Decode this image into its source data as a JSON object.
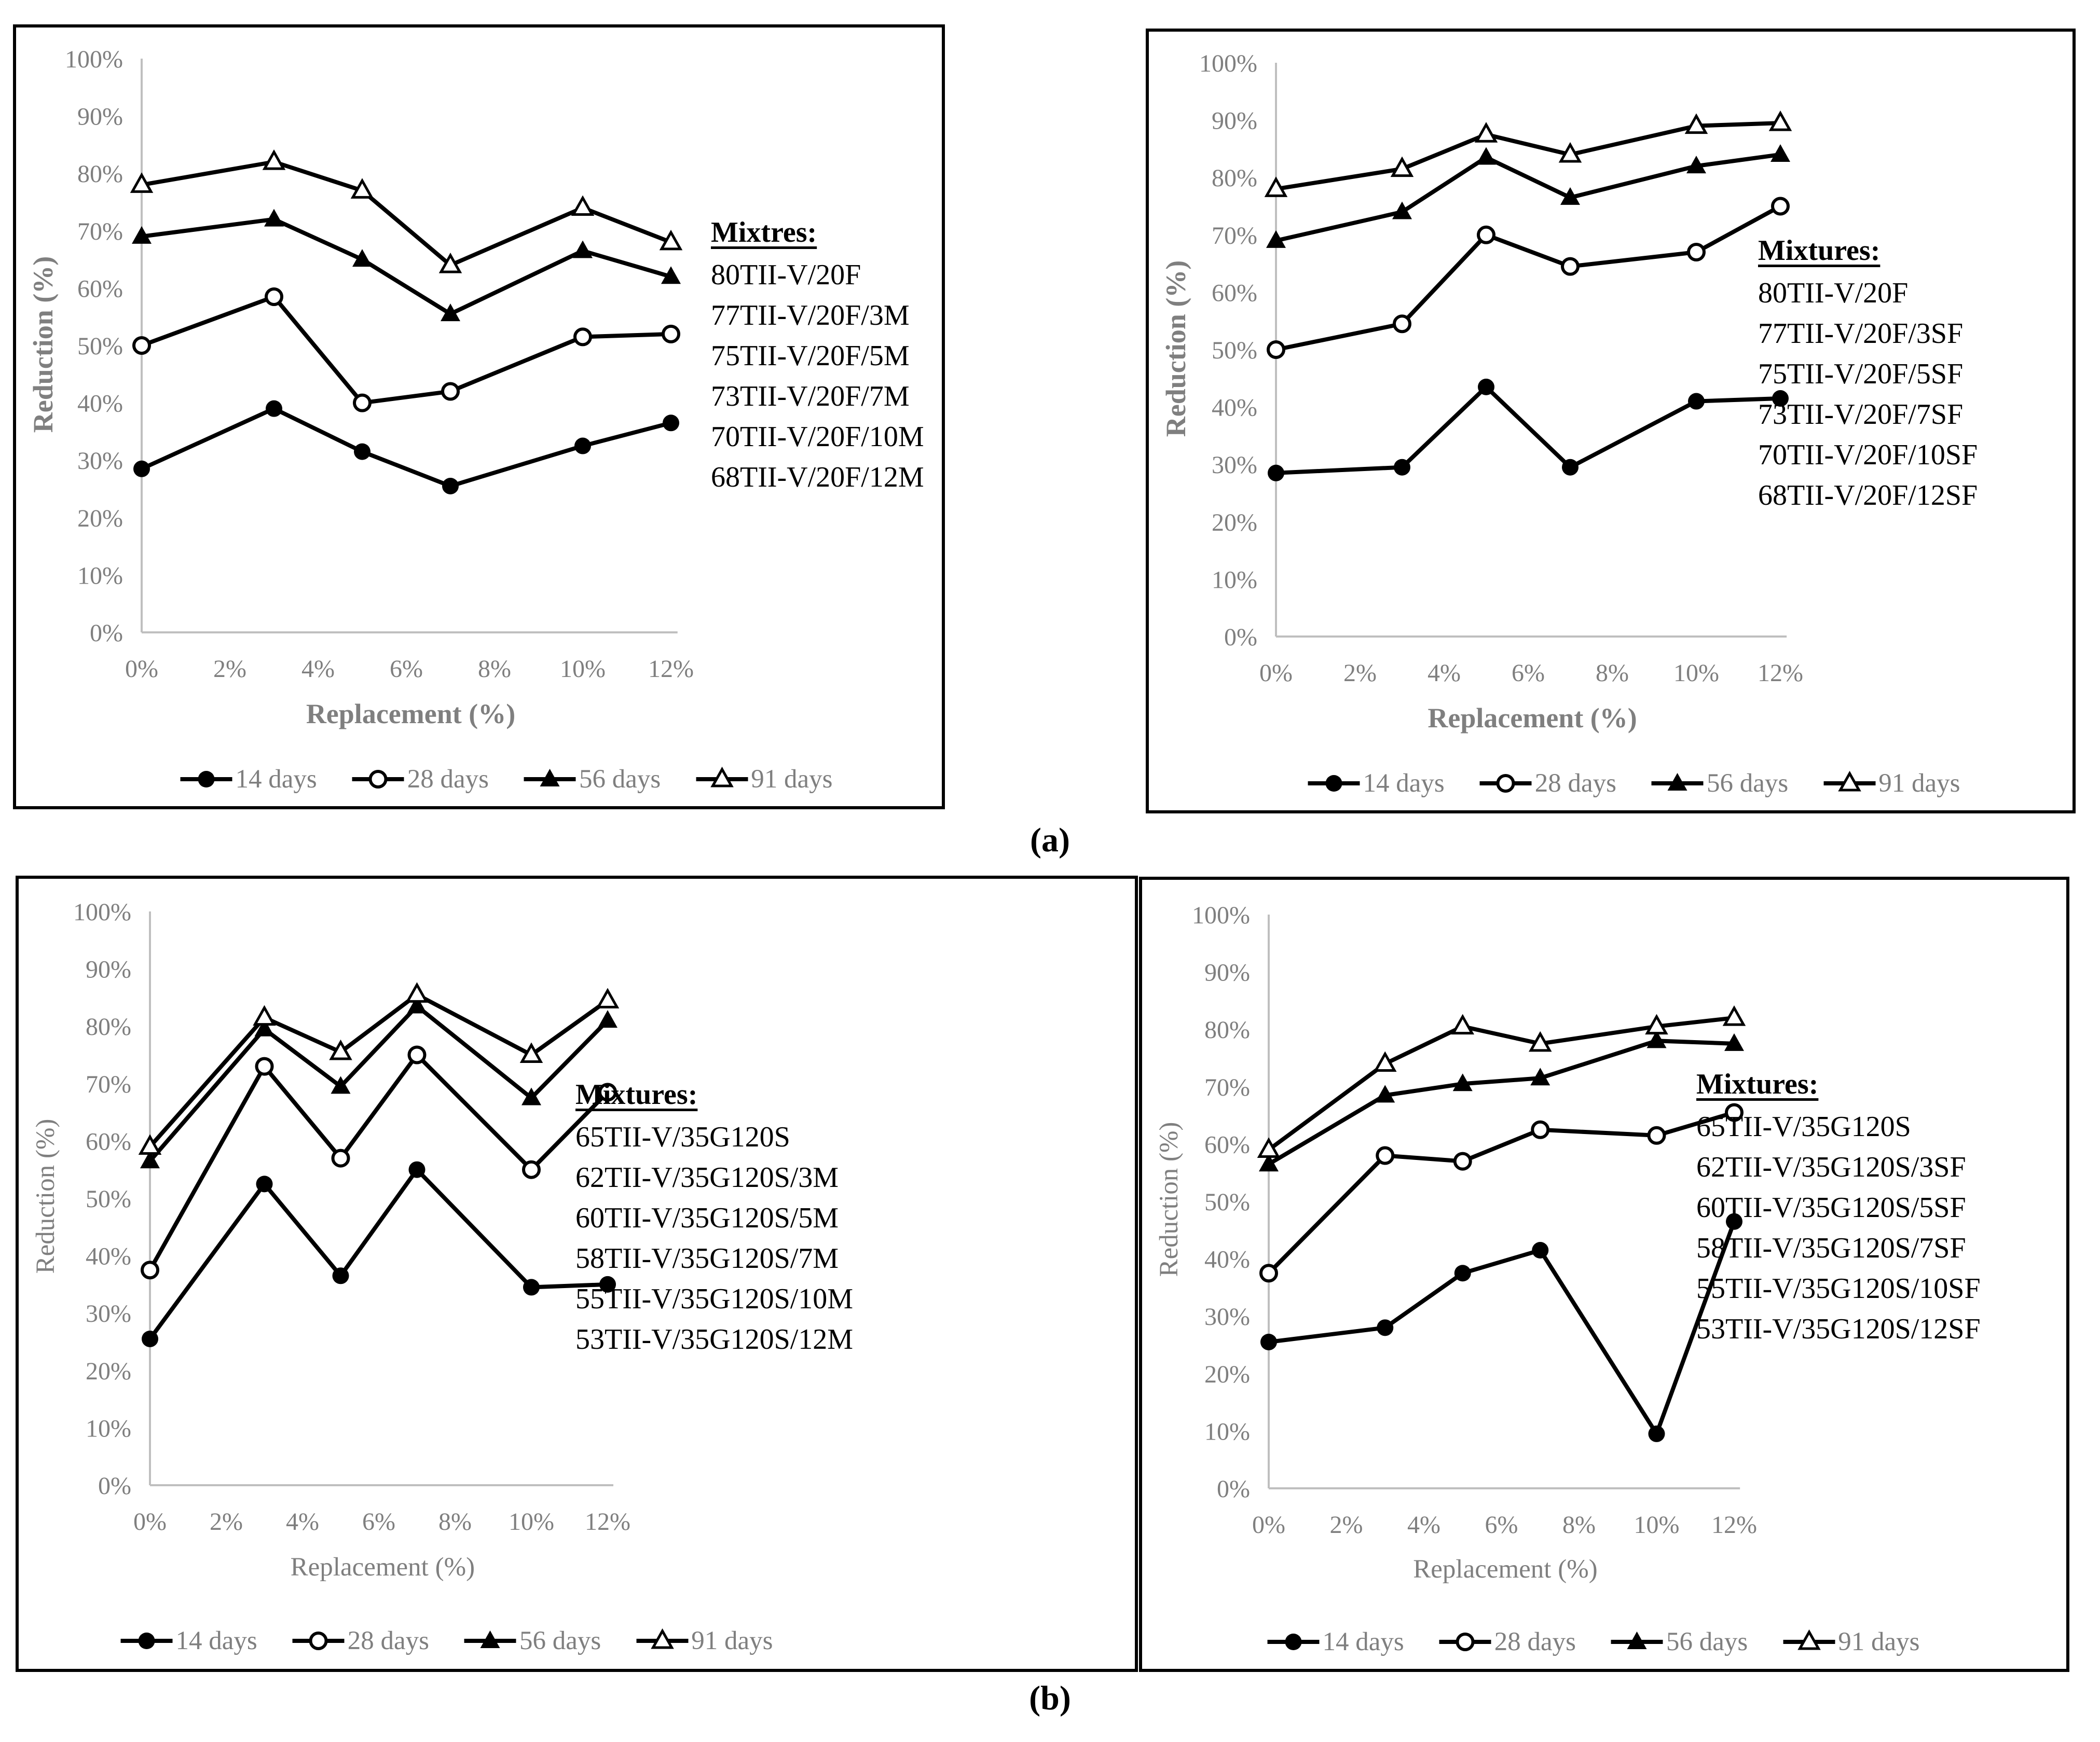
{
  "figure": {
    "label_a": "(a)",
    "label_b": "(b)"
  },
  "shared": {
    "colors": {
      "series_line": "#000000",
      "axis_line": "#bfbfbf",
      "tick_text": "#7f7f7f",
      "axis_title_text": "#7f7f7f",
      "legend_text": "#7f7f7f",
      "mixtures_text": "#000000",
      "panel_border": "#000000",
      "background": "#ffffff"
    },
    "y_tick_labels": [
      "0%",
      "10%",
      "20%",
      "30%",
      "40%",
      "50%",
      "60%",
      "70%",
      "80%",
      "90%",
      "100%"
    ],
    "x_tick_labels": [
      "0%",
      "2%",
      "4%",
      "6%",
      "8%",
      "10%",
      "12%"
    ]
  },
  "chart_data": [
    {
      "id": "a-left",
      "type": "line",
      "xlabel": "Replacement (%)",
      "ylabel": "Reduction (%)",
      "xlim": [
        0,
        12
      ],
      "ylim": [
        0,
        100
      ],
      "x_ticks_percent": [
        0,
        2,
        4,
        6,
        8,
        10,
        12
      ],
      "grid": false,
      "legend_position": "bottom",
      "mixtures_title": "Mixtres:",
      "mixtures": [
        "80TII-V/20F",
        "77TII-V/20F/3M",
        "75TII-V/20F/5M",
        "73TII-V/20F/7M",
        "70TII-V/20F/10M",
        "68TII-V/20F/12M"
      ],
      "x": [
        0,
        3,
        5,
        7,
        10,
        12
      ],
      "series": [
        {
          "name": "14 days",
          "marker": "filled-circle",
          "values": [
            28.5,
            39,
            31.5,
            25.5,
            32.5,
            36.5
          ]
        },
        {
          "name": "28 days",
          "marker": "open-circle",
          "values": [
            50,
            58.5,
            40,
            42,
            51.5,
            52
          ]
        },
        {
          "name": "56 days",
          "marker": "filled-triangle",
          "values": [
            69,
            72,
            65,
            55.5,
            66.5,
            62
          ]
        },
        {
          "name": "91 days",
          "marker": "open-triangle",
          "values": [
            78,
            82,
            77,
            64,
            74,
            68
          ]
        }
      ]
    },
    {
      "id": "a-right",
      "type": "line",
      "xlabel": "Replacement (%)",
      "ylabel": "Reduction (%)",
      "xlim": [
        0,
        12
      ],
      "ylim": [
        0,
        100
      ],
      "x_ticks_percent": [
        0,
        2,
        4,
        6,
        8,
        10,
        12
      ],
      "grid": false,
      "legend_position": "bottom",
      "mixtures_title": "Mixtures:",
      "mixtures": [
        "80TII-V/20F",
        "77TII-V/20F/3SF",
        "75TII-V/20F/5SF",
        "73TII-V/20F/7SF",
        "70TII-V/20F/10SF",
        "68TII-V/20F/12SF"
      ],
      "x": [
        0,
        3,
        5,
        7,
        10,
        12
      ],
      "series": [
        {
          "name": "14 days",
          "marker": "filled-circle",
          "values": [
            28.5,
            29.5,
            43.5,
            29.5,
            41,
            41.5
          ]
        },
        {
          "name": "28 days",
          "marker": "open-circle",
          "values": [
            50,
            54.5,
            70,
            64.5,
            67,
            75
          ]
        },
        {
          "name": "56 days",
          "marker": "filled-triangle",
          "values": [
            69,
            74,
            83.5,
            76.5,
            82,
            84
          ]
        },
        {
          "name": "91 days",
          "marker": "open-triangle",
          "values": [
            78,
            81.5,
            87.5,
            84,
            89,
            89.5
          ]
        }
      ]
    },
    {
      "id": "b-left",
      "type": "line",
      "xlabel": "Replacement (%)",
      "ylabel": "Reduction (%)",
      "xlim": [
        0,
        12
      ],
      "ylim": [
        0,
        100
      ],
      "x_ticks_percent": [
        0,
        2,
        4,
        6,
        8,
        10,
        12
      ],
      "grid": false,
      "legend_position": "bottom",
      "mixtures_title": "Mixtures:",
      "mixtures": [
        "65TII-V/35G120S",
        "62TII-V/35G120S/3M",
        "60TII-V/35G120S/5M",
        "58TII-V/35G120S/7M",
        "55TII-V/35G120S/10M",
        "53TII-V/35G120S/12M"
      ],
      "x": [
        0,
        3,
        5,
        7,
        10,
        12
      ],
      "series": [
        {
          "name": "14 days",
          "marker": "filled-circle",
          "values": [
            25.5,
            52.5,
            36.5,
            55,
            34.5,
            35
          ]
        },
        {
          "name": "28 days",
          "marker": "open-circle",
          "values": [
            37.5,
            73,
            57,
            75,
            55,
            68.5
          ]
        },
        {
          "name": "56 days",
          "marker": "filled-triangle",
          "values": [
            56.5,
            79.5,
            69.5,
            83.5,
            67.5,
            81
          ]
        },
        {
          "name": "91 days",
          "marker": "open-triangle",
          "values": [
            59,
            81.5,
            75.5,
            85.5,
            75,
            84.5
          ]
        }
      ]
    },
    {
      "id": "b-right",
      "type": "line",
      "xlabel": "Replacement (%)",
      "ylabel": "Reduction (%)",
      "xlim": [
        0,
        12
      ],
      "ylim": [
        0,
        100
      ],
      "x_ticks_percent": [
        0,
        2,
        4,
        6,
        8,
        10,
        12
      ],
      "grid": false,
      "legend_position": "bottom",
      "mixtures_title": "Mixtures:",
      "mixtures": [
        "65TII-V/35G120S",
        "62TII-V/35G120S/3SF",
        "60TII-V/35G120S/5SF",
        "58TII-V/35G120S/7SF",
        "55TII-V/35G120S/10SF",
        "53TII-V/35G120S/12SF"
      ],
      "x": [
        0,
        3,
        5,
        7,
        10,
        12
      ],
      "series": [
        {
          "name": "14 days",
          "marker": "filled-circle",
          "values": [
            25.5,
            28,
            37.5,
            41.5,
            9.5,
            46.5
          ]
        },
        {
          "name": "28 days",
          "marker": "open-circle",
          "values": [
            37.5,
            58,
            57,
            62.5,
            61.5,
            65.5
          ]
        },
        {
          "name": "56 days",
          "marker": "filled-triangle",
          "values": [
            56.5,
            68.5,
            70.5,
            71.5,
            78,
            77.5
          ]
        },
        {
          "name": "91 days",
          "marker": "open-triangle",
          "values": [
            59,
            74,
            80.5,
            77.5,
            80.5,
            82
          ]
        }
      ]
    }
  ]
}
